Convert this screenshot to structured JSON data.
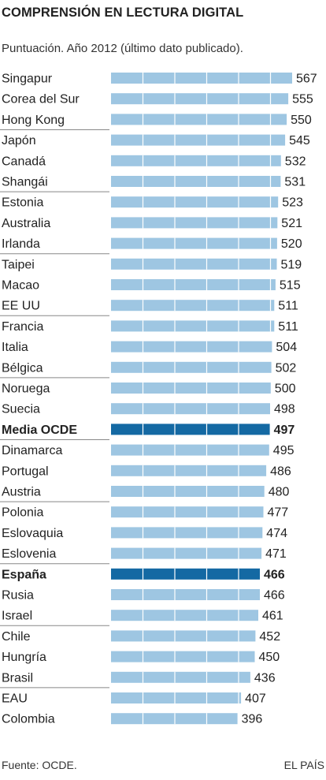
{
  "header": {
    "title": "COMPRENSIÓN EN LECTURA DIGITAL",
    "subtitle": "Puntuación. Año 2012 (último dato publicado)."
  },
  "footer": {
    "source": "Fuente: OCDE.",
    "brand": "EL PAÍS"
  },
  "colors": {
    "bar": "#9ec6e2",
    "bar_highlight": "#1469a3",
    "separator": "#888888",
    "text": "#222222"
  },
  "chart_data": {
    "type": "bar",
    "orientation": "horizontal",
    "title": "COMPRENSIÓN EN LECTURA DIGITAL",
    "subtitle": "Puntuación. Año 2012 (último dato publicado).",
    "categories": [
      "Singapur",
      "Corea del Sur",
      "Hong Kong",
      "Japón",
      "Canadá",
      "Shangái",
      "Estonia",
      "Australia",
      "Irlanda",
      "Taipei",
      "Macao",
      "EE UU",
      "Francia",
      "Italia",
      "Bélgica",
      "Noruega",
      "Suecia",
      "Media OCDE",
      "Dinamarca",
      "Portugal",
      "Austria",
      "Polonia",
      "Eslovaquia",
      "Eslovenia",
      "España",
      "Rusia",
      "Israel",
      "Chile",
      "Hungría",
      "Brasil",
      "EAU",
      "Colombia"
    ],
    "values": [
      567,
      555,
      550,
      545,
      532,
      531,
      523,
      521,
      520,
      519,
      515,
      511,
      511,
      504,
      502,
      500,
      498,
      497,
      495,
      486,
      480,
      477,
      474,
      471,
      466,
      466,
      461,
      452,
      450,
      436,
      407,
      396
    ],
    "highlighted": [
      "Media OCDE",
      "España"
    ],
    "grid": false,
    "legend": "none"
  }
}
